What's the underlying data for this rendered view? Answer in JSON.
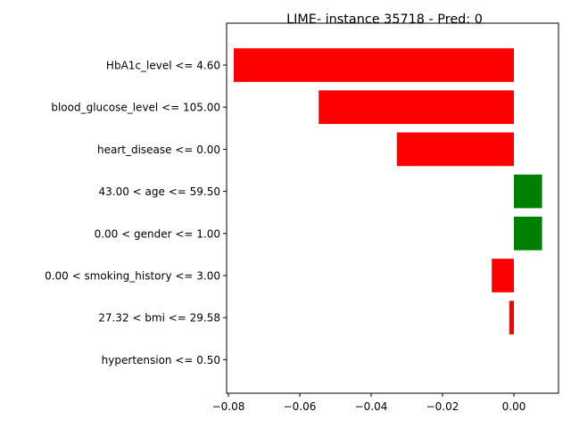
{
  "chart_data": {
    "type": "bar",
    "orientation": "horizontal",
    "title": "LIME- instance 35718 - Pred: 0",
    "xlabel": "",
    "ylabel": "",
    "categories": [
      "HbA1c_level <= 4.60",
      "blood_glucose_level <= 105.00",
      "heart_disease <= 0.00",
      "43.00 < age <= 59.50",
      "0.00 < gender <= 1.00",
      "0.00 < smoking_history <= 3.00",
      "27.32 < bmi <= 29.58",
      "hypertension <= 0.50"
    ],
    "values": [
      -0.0785,
      -0.0547,
      -0.0328,
      0.0079,
      0.0079,
      -0.0062,
      -0.0013,
      0.0
    ],
    "colors": {
      "negative": "#ff0000",
      "positive": "#008000"
    },
    "xlim": [
      -0.0805,
      0.0125
    ],
    "xticks": [
      -0.08,
      -0.06,
      -0.04,
      -0.02,
      0.0
    ],
    "xtick_labels": [
      "−0.08",
      "−0.06",
      "−0.04",
      "−0.02",
      "0.00"
    ],
    "grid": false,
    "legend": "none"
  }
}
